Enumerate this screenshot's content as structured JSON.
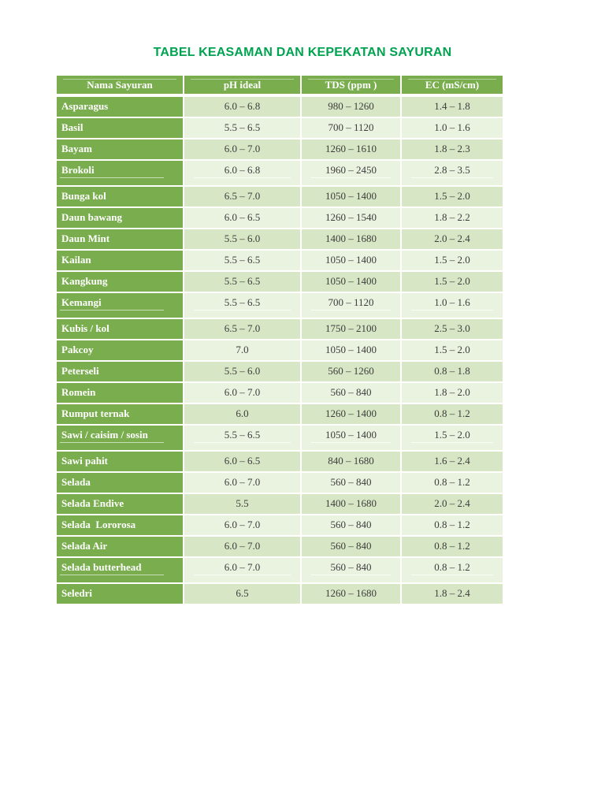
{
  "title": "TABEL KEASAMAN DAN KEPEKATAN SAYURAN",
  "colors": {
    "header_green": "#79ad4e",
    "row_stripe_dark": "#d7e6c5",
    "row_stripe_light": "#eaf2e0",
    "title_green": "#00a34f",
    "data_text": "#3d3d3d"
  },
  "table": {
    "headers": [
      "Nama Sayuran",
      "pH ideal",
      "TDS (ppm )",
      "EC (mS/cm)"
    ],
    "rows": [
      {
        "name": "Asparagus",
        "ph": "6.0 – 6.8",
        "tds": "980 – 1260",
        "ec": "1.4 – 1.8",
        "underlined": false
      },
      {
        "name": "Basil",
        "ph": "5.5 – 6.5",
        "tds": "700 – 1120",
        "ec": "1.0 – 1.6",
        "underlined": false
      },
      {
        "name": "Bayam",
        "ph": "6.0 – 7.0",
        "tds": "1260 – 1610",
        "ec": "1.8 – 2.3",
        "underlined": false
      },
      {
        "name": "Brokoli",
        "ph": "6.0 – 6.8",
        "tds": "1960 – 2450",
        "ec": "2.8 – 3.5",
        "underlined": true
      },
      {
        "name": "Bunga kol",
        "ph": "6.5 – 7.0",
        "tds": "1050 – 1400",
        "ec": "1.5 – 2.0",
        "underlined": false
      },
      {
        "name": "Daun bawang",
        "ph": "6.0 – 6.5",
        "tds": "1260 – 1540",
        "ec": "1.8 – 2.2",
        "underlined": false
      },
      {
        "name": "Daun Mint",
        "ph": "5.5 – 6.0",
        "tds": "1400 – 1680",
        "ec": "2.0 – 2.4",
        "underlined": false
      },
      {
        "name": "Kailan",
        "ph": "5.5 – 6.5",
        "tds": "1050 – 1400",
        "ec": "1.5 – 2.0",
        "underlined": false
      },
      {
        "name": "Kangkung",
        "ph": "5.5 – 6.5",
        "tds": "1050 – 1400",
        "ec": "1.5 – 2.0",
        "underlined": false
      },
      {
        "name": "Kemangi",
        "ph": "5.5 – 6.5",
        "tds": "700 – 1120",
        "ec": "1.0 – 1.6",
        "underlined": true
      },
      {
        "name": "Kubis / kol",
        "ph": "6.5 – 7.0",
        "tds": "1750 – 2100",
        "ec": "2.5 – 3.0",
        "underlined": false
      },
      {
        "name": "Pakcoy",
        "ph": "7.0",
        "tds": "1050 – 1400",
        "ec": "1.5 – 2.0",
        "underlined": false
      },
      {
        "name": "Peterseli",
        "ph": "5.5 – 6.0",
        "tds": "560 – 1260",
        "ec": "0.8 – 1.8",
        "underlined": false
      },
      {
        "name": "Romein",
        "ph": "6.0 – 7.0",
        "tds": "560 – 840",
        "ec": "1.8 – 2.0",
        "underlined": false
      },
      {
        "name": "Rumput ternak",
        "ph": "6.0",
        "tds": "1260 – 1400",
        "ec": "0.8 – 1.2",
        "underlined": false
      },
      {
        "name": "Sawi / caisim / sosin",
        "ph": "5.5 – 6.5",
        "tds": "1050 – 1400",
        "ec": "1.5 – 2.0",
        "underlined": true
      },
      {
        "name": "Sawi pahit",
        "ph": "6.0 – 6.5",
        "tds": "840 – 1680",
        "ec": "1.6 – 2.4",
        "underlined": false
      },
      {
        "name": "Selada",
        "ph": "6.0 – 7.0",
        "tds": "560 – 840",
        "ec": "0.8 – 1.2",
        "underlined": false
      },
      {
        "name": "Selada Endive",
        "ph": "5.5",
        "tds": "1400 – 1680",
        "ec": "2.0 – 2.4",
        "underlined": false
      },
      {
        "name": "Selada  Lororosa",
        "ph": "6.0 – 7.0",
        "tds": "560 – 840",
        "ec": "0.8 – 1.2",
        "underlined": false
      },
      {
        "name": "Selada Air",
        "ph": "6.0 – 7.0",
        "tds": "560 – 840",
        "ec": "0.8 – 1.2",
        "underlined": false
      },
      {
        "name": "Selada butterhead",
        "ph": "6.0 – 7.0",
        "tds": "560 – 840",
        "ec": "0.8 – 1.2",
        "underlined": true
      },
      {
        "name": "Seledri",
        "ph": "6.5",
        "tds": "1260 – 1680",
        "ec": "1.8 – 2.4",
        "underlined": false
      }
    ]
  }
}
